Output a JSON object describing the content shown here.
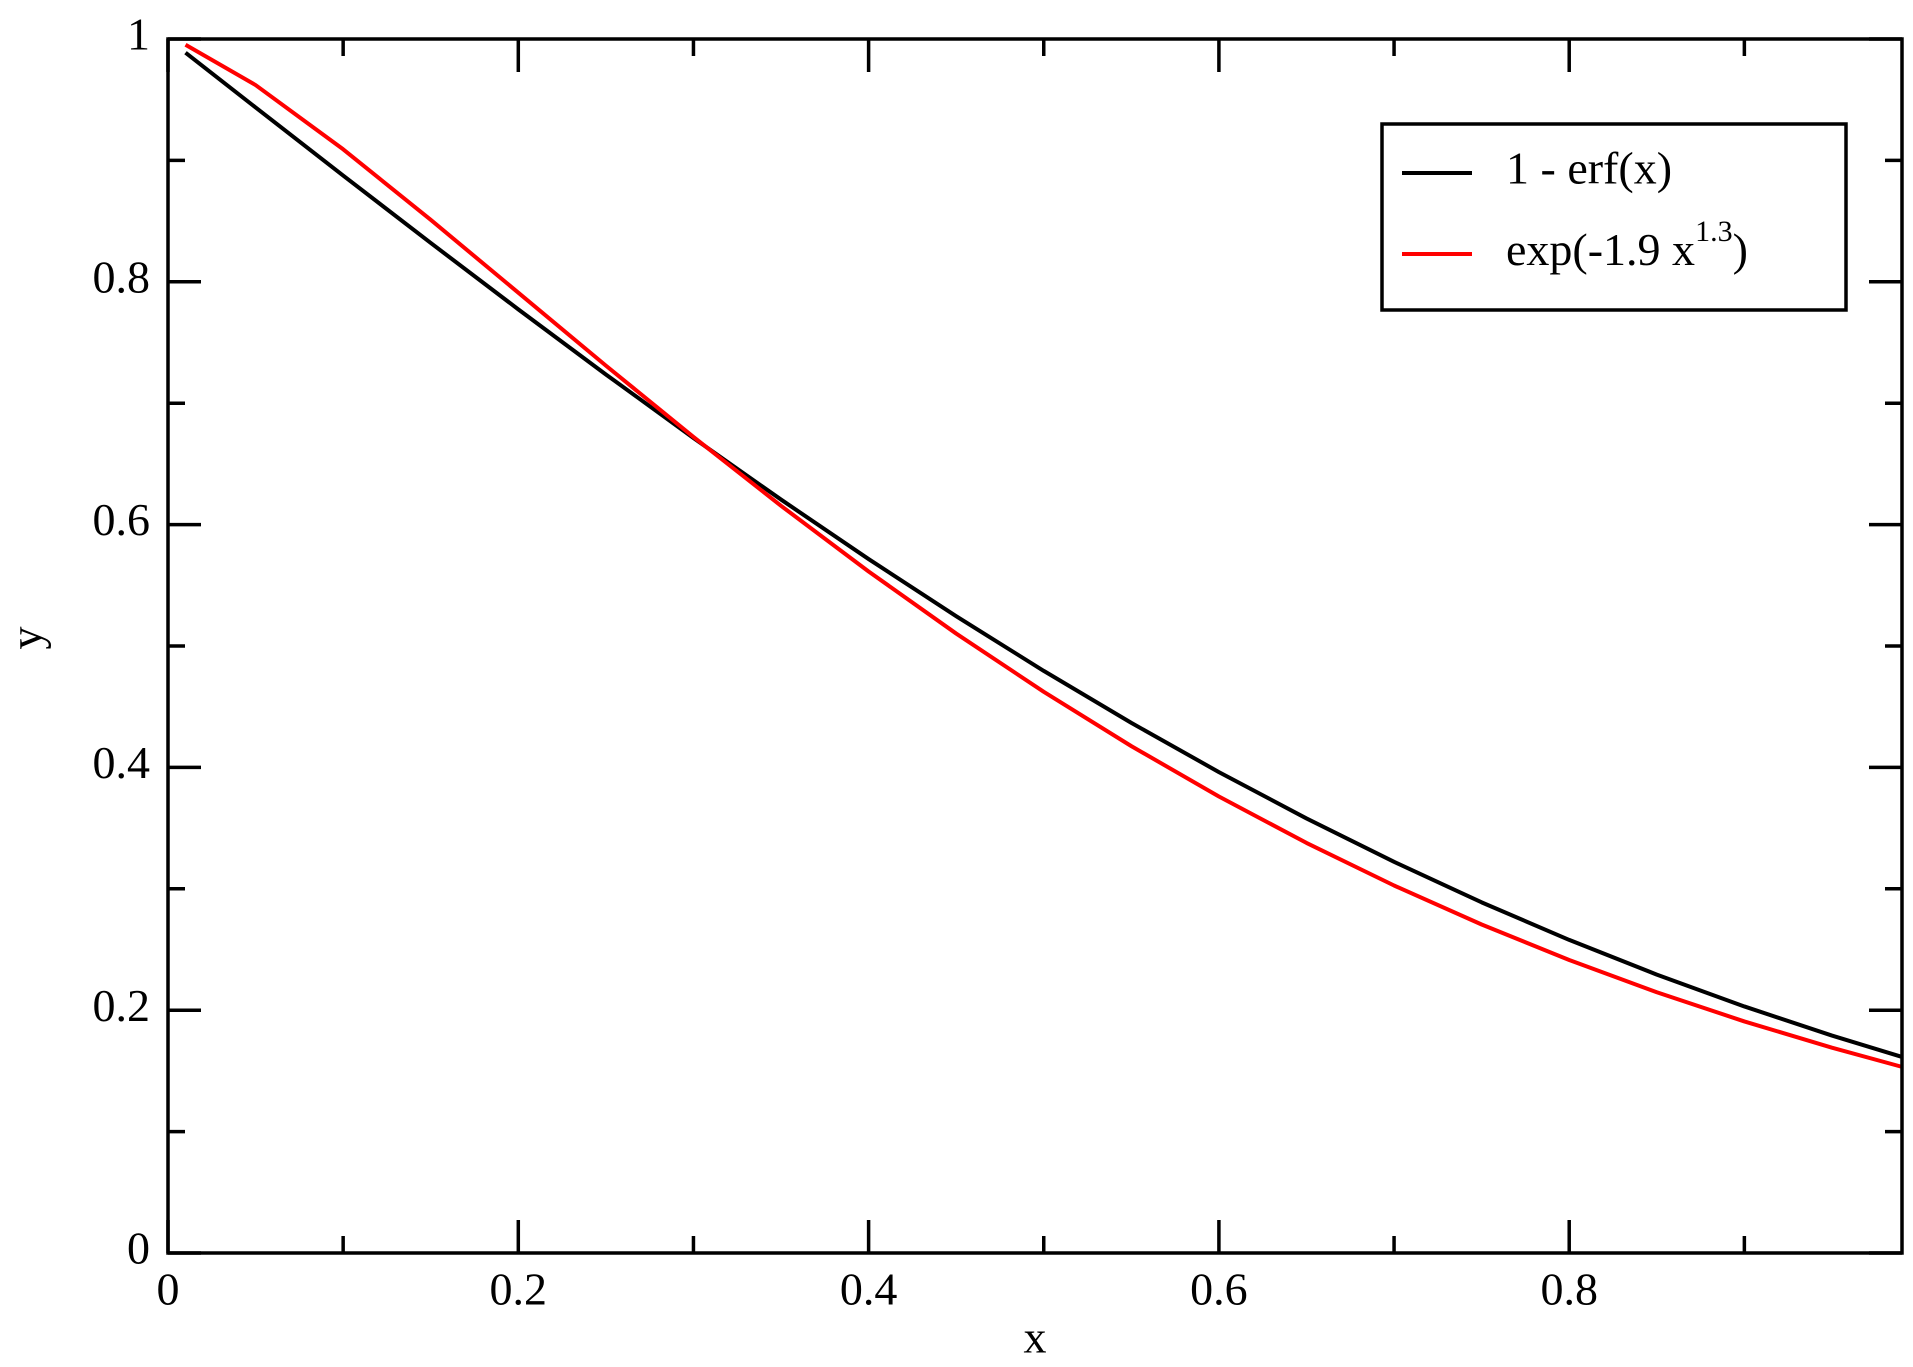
{
  "chart_data": {
    "type": "line",
    "xlabel": "x",
    "ylabel": "y",
    "x": [
      0.01,
      0.05,
      0.1,
      0.15,
      0.2,
      0.25,
      0.3,
      0.35,
      0.4,
      0.45,
      0.5,
      0.55,
      0.6,
      0.65,
      0.7,
      0.75,
      0.8,
      0.85,
      0.9,
      0.95,
      0.99
    ],
    "series": [
      {
        "name": "1 - erf(x)",
        "color": "#000000",
        "values": [
          0.98872,
          0.94363,
          0.88754,
          0.832,
          0.7773,
          0.72367,
          0.67137,
          0.62062,
          0.57161,
          0.52452,
          0.4795,
          0.43668,
          0.39614,
          0.35797,
          0.3222,
          0.28884,
          0.2579,
          0.22933,
          0.20309,
          0.17911,
          0.16148
        ]
      },
      {
        "name": "exp(-1.9 x1.3)",
        "name_superscript": "1.3",
        "color": "#ff0000",
        "values": [
          0.99524,
          0.96205,
          0.90917,
          0.85103,
          0.79103,
          0.73097,
          0.67222,
          0.61548,
          0.56139,
          0.51025,
          0.46224,
          0.41753,
          0.37606,
          0.33779,
          0.30272,
          0.2706,
          0.24133,
          0.21478,
          0.19076,
          0.16909,
          0.15332
        ]
      }
    ],
    "xlim": [
      0,
      0.99
    ],
    "ylim": [
      0,
      1
    ],
    "xticks": [
      0,
      0.2,
      0.4,
      0.6,
      0.8
    ],
    "yticks": [
      0,
      0.2,
      0.4,
      0.6,
      0.8,
      1
    ],
    "xminorticks": [
      0.1,
      0.3,
      0.5,
      0.7,
      0.9
    ],
    "yminorticks": [
      0.1,
      0.3,
      0.5,
      0.7,
      0.9
    ],
    "legend": "upper right"
  }
}
